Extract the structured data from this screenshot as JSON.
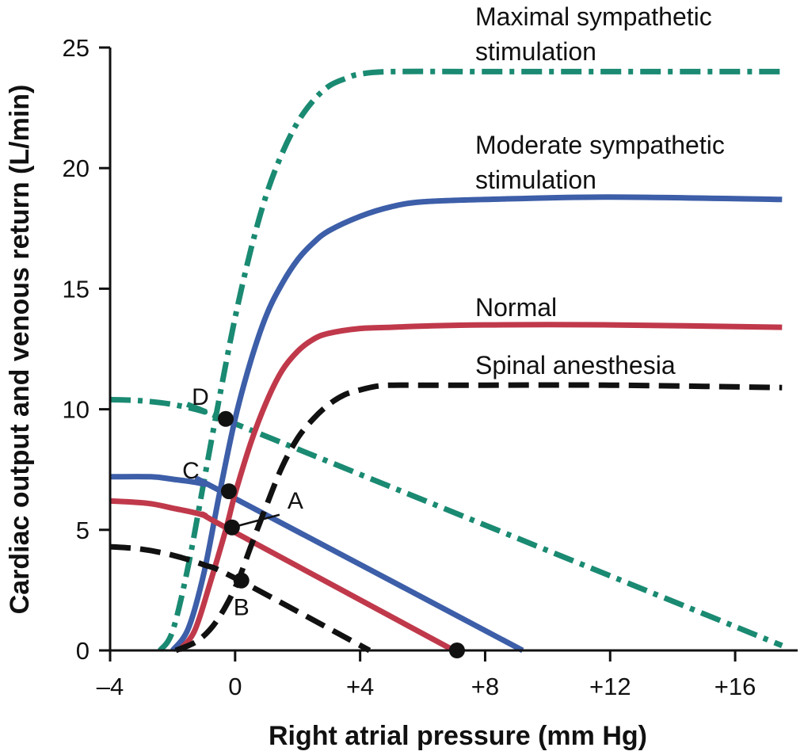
{
  "chart_data": {
    "type": "line",
    "title": "",
    "xlabel": "Right atrial pressure (mm Hg)",
    "ylabel": "Cardiac output and venous return (L/min)",
    "xlim": [
      -4,
      18
    ],
    "ylim": [
      0,
      25
    ],
    "x_ticks": [
      -4,
      0,
      4,
      8,
      12,
      16
    ],
    "x_tick_labels": [
      "–4",
      "0",
      "+4",
      "+8",
      "+12",
      "+16"
    ],
    "y_ticks": [
      0,
      5,
      10,
      15,
      20,
      25
    ],
    "y_tick_labels": [
      "0",
      "5",
      "10",
      "15",
      "20",
      "25"
    ],
    "grid": false,
    "legend": "none",
    "series": [
      {
        "name": "Maximal sympathetic stimulation",
        "kind": "cardiac_output",
        "style": "dash-dot",
        "color": "#1a8a72",
        "x": [
          -2.4,
          -2.0,
          -1.5,
          -1.0,
          -0.5,
          0.0,
          0.5,
          1.0,
          1.5,
          2.0,
          2.5,
          3.0,
          3.5,
          4.0,
          5.0,
          8.0,
          12.0,
          17.5
        ],
        "y": [
          0.0,
          0.8,
          3.5,
          7.0,
          10.5,
          13.8,
          16.6,
          18.9,
          20.6,
          21.9,
          22.8,
          23.4,
          23.7,
          23.9,
          24.0,
          24.0,
          24.0,
          24.0
        ]
      },
      {
        "name": "Maximal sympathetic stimulation",
        "kind": "venous_return",
        "style": "dash-dot",
        "color": "#1a8a72",
        "x": [
          -4.0,
          -3.0,
          -2.0,
          -1.0,
          0.0,
          17.5
        ],
        "y": [
          10.4,
          10.35,
          10.2,
          9.9,
          9.4,
          0.2
        ]
      },
      {
        "name": "Moderate sympathetic stimulation",
        "kind": "cardiac_output",
        "style": "solid",
        "color": "#3d5ea8",
        "x": [
          -2.0,
          -1.5,
          -1.0,
          -0.5,
          0.0,
          0.5,
          1.0,
          1.5,
          2.0,
          2.5,
          3.0,
          4.0,
          5.0,
          6.0,
          8.0,
          12.0,
          17.5
        ],
        "y": [
          0.0,
          0.9,
          3.2,
          6.5,
          9.6,
          12.0,
          13.9,
          15.2,
          16.2,
          16.9,
          17.4,
          18.0,
          18.4,
          18.6,
          18.7,
          18.8,
          18.7
        ]
      },
      {
        "name": "Moderate sympathetic stimulation",
        "kind": "venous_return",
        "style": "solid",
        "color": "#3d5ea8",
        "x": [
          -4.0,
          -2.7,
          -2.0,
          -1.0,
          -0.3,
          9.2
        ],
        "y": [
          7.2,
          7.2,
          7.1,
          6.9,
          6.5,
          0.0
        ]
      },
      {
        "name": "Normal",
        "kind": "cardiac_output",
        "style": "solid",
        "color": "#c0394b",
        "x": [
          -1.8,
          -1.3,
          -0.8,
          -0.3,
          0.0,
          0.5,
          1.0,
          1.5,
          2.0,
          2.5,
          3.0,
          4.0,
          5.0,
          6.0,
          8.0,
          12.0,
          17.5
        ],
        "y": [
          0.0,
          0.8,
          2.8,
          5.0,
          6.5,
          8.6,
          10.3,
          11.6,
          12.4,
          12.9,
          13.15,
          13.35,
          13.4,
          13.45,
          13.5,
          13.5,
          13.4
        ]
      },
      {
        "name": "Normal",
        "kind": "venous_return",
        "style": "solid",
        "color": "#c0394b",
        "x": [
          -4.0,
          -2.8,
          -2.0,
          -1.0,
          -0.3,
          7.0
        ],
        "y": [
          6.2,
          6.1,
          5.9,
          5.6,
          5.1,
          0.0
        ]
      },
      {
        "name": "Spinal anesthesia",
        "kind": "cardiac_output",
        "style": "dashed",
        "color": "#111111",
        "x": [
          -1.9,
          -1.2,
          -0.6,
          0.0,
          0.5,
          1.0,
          1.5,
          2.0,
          2.5,
          3.0,
          3.5,
          4.0,
          4.5,
          5.0,
          6.0,
          8.0,
          12.0,
          17.5
        ],
        "y": [
          0.0,
          0.4,
          1.2,
          2.6,
          4.3,
          6.0,
          7.6,
          8.8,
          9.6,
          10.2,
          10.6,
          10.8,
          10.95,
          11.0,
          11.0,
          11.0,
          11.0,
          10.9
        ]
      },
      {
        "name": "Spinal anesthesia",
        "kind": "venous_return",
        "style": "dashed",
        "color": "#111111",
        "x": [
          -4.0,
          -3.0,
          -2.0,
          -1.0,
          0.0,
          4.3
        ],
        "y": [
          4.3,
          4.2,
          3.95,
          3.55,
          3.0,
          0.0
        ]
      }
    ],
    "points": [
      {
        "label": "D",
        "x": -0.3,
        "y": 9.6
      },
      {
        "label": "C",
        "x": -0.2,
        "y": 6.6
      },
      {
        "label": "A",
        "x": -0.1,
        "y": 5.1
      },
      {
        "label": "B",
        "x": 0.2,
        "y": 2.9
      },
      {
        "label": "",
        "x": 7.1,
        "y": 0.0
      }
    ],
    "curve_labels": [
      {
        "lines": [
          "Maximal sympathetic",
          "stimulation"
        ]
      },
      {
        "lines": [
          "Moderate sympathetic",
          "stimulation"
        ]
      },
      {
        "lines": [
          "Normal"
        ]
      },
      {
        "lines": [
          "Spinal anesthesia"
        ]
      }
    ]
  }
}
